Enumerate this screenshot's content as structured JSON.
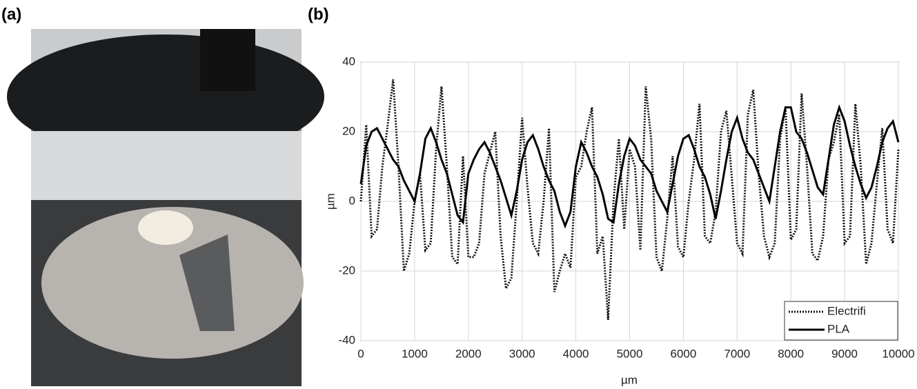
{
  "panels": {
    "a": "(a)",
    "b": "(b)"
  },
  "chart_data": {
    "type": "line",
    "xlabel": "µm",
    "ylabel": "µm",
    "x": [
      0,
      100,
      200,
      300,
      400,
      500,
      600,
      700,
      800,
      900,
      1000,
      1100,
      1200,
      1300,
      1400,
      1500,
      1600,
      1700,
      1800,
      1900,
      2000,
      2100,
      2200,
      2300,
      2400,
      2500,
      2600,
      2700,
      2800,
      2900,
      3000,
      3100,
      3200,
      3300,
      3400,
      3500,
      3600,
      3700,
      3800,
      3900,
      4000,
      4100,
      4200,
      4300,
      4400,
      4500,
      4600,
      4700,
      4800,
      4900,
      5000,
      5100,
      5200,
      5300,
      5400,
      5500,
      5600,
      5700,
      5800,
      5900,
      6000,
      6100,
      6200,
      6300,
      6400,
      6500,
      6600,
      6700,
      6800,
      6900,
      7000,
      7100,
      7200,
      7300,
      7400,
      7500,
      7600,
      7700,
      7800,
      7900,
      8000,
      8100,
      8200,
      8300,
      8400,
      8500,
      8600,
      8700,
      8800,
      8900,
      9000,
      9100,
      9200,
      9300,
      9400,
      9500,
      9600,
      9700,
      9800,
      9900,
      10000
    ],
    "series": [
      {
        "name": "Electrifi",
        "color": "#111111",
        "dash": true,
        "values": [
          0,
          22,
          -10,
          -8,
          10,
          22,
          35,
          10,
          -20,
          -15,
          0,
          8,
          -14,
          -12,
          15,
          33,
          10,
          -16,
          -18,
          13,
          -16,
          -16,
          -12,
          8,
          14,
          20,
          -10,
          -25,
          -22,
          0,
          24,
          4,
          -12,
          -15,
          0,
          21,
          -26,
          -20,
          -15,
          -19,
          7,
          10,
          20,
          27,
          -15,
          -10,
          -34,
          0,
          18,
          -8,
          15,
          10,
          -14,
          33,
          18,
          -16,
          -20,
          -5,
          13,
          -13,
          -16,
          0,
          12,
          28,
          -10,
          -12,
          -3,
          20,
          26,
          7,
          -12,
          -15,
          25,
          32,
          8,
          -10,
          -16,
          -12,
          18,
          27,
          -11,
          -8,
          31,
          10,
          -15,
          -17,
          -10,
          12,
          17,
          25,
          -12,
          -10,
          28,
          10,
          -18,
          -12,
          5,
          21,
          -8,
          -12,
          15
        ]
      },
      {
        "name": "PLA",
        "color": "#000000",
        "dash": false,
        "values": [
          5,
          16,
          20,
          21,
          18,
          15,
          12,
          10,
          6,
          3,
          0,
          8,
          18,
          21,
          17,
          12,
          8,
          2,
          -4,
          -6,
          8,
          12,
          15,
          17,
          14,
          10,
          6,
          1,
          -4,
          3,
          12,
          17,
          19,
          15,
          10,
          6,
          3,
          -3,
          -7,
          -3,
          10,
          17,
          14,
          10,
          7,
          2,
          -5,
          -6,
          5,
          13,
          18,
          16,
          12,
          10,
          8,
          3,
          0,
          -3,
          5,
          13,
          18,
          19,
          15,
          10,
          7,
          2,
          -5,
          3,
          12,
          20,
          24,
          18,
          14,
          12,
          8,
          4,
          0,
          10,
          20,
          27,
          27,
          20,
          18,
          14,
          9,
          4,
          2,
          12,
          22,
          27,
          23,
          16,
          10,
          5,
          1,
          4,
          10,
          17,
          21,
          23,
          17
        ]
      }
    ],
    "xlim": [
      0,
      10000
    ],
    "xticks": [
      0,
      1000,
      2000,
      3000,
      4000,
      5000,
      6000,
      7000,
      8000,
      9000,
      10000
    ],
    "ylim": [
      -40,
      40
    ],
    "yticks": [
      -40,
      -20,
      0,
      20,
      40
    ],
    "grid": true,
    "legend": "lower right"
  }
}
